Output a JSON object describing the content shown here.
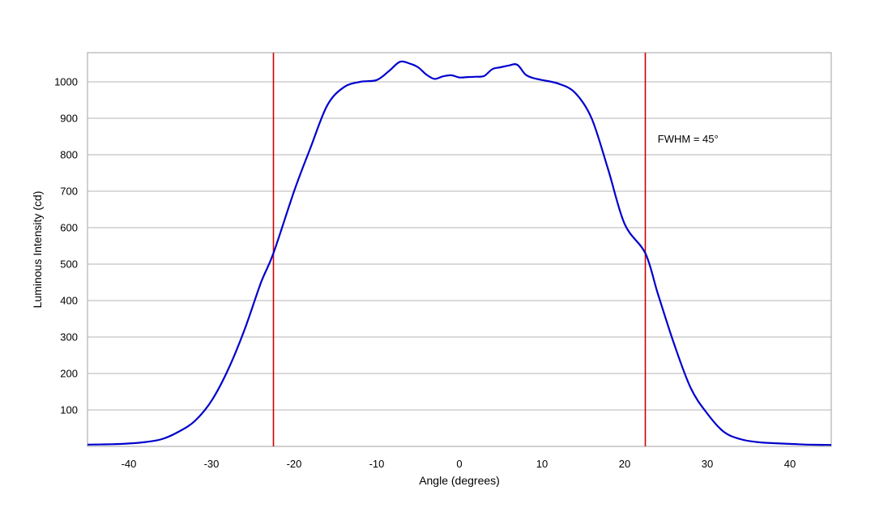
{
  "chart_data": {
    "type": "line",
    "title": "",
    "xlabel": "Angle (degrees)",
    "ylabel": "Luminous Intensity (cd)",
    "xlim": [
      -45,
      45
    ],
    "ylim": [
      0,
      1080
    ],
    "x_ticks": [
      -40,
      -30,
      -20,
      -10,
      0,
      10,
      20,
      30,
      40
    ],
    "x_tick_labels": [
      "-40",
      "-30",
      "-20",
      "-10",
      "0",
      "10",
      "20",
      "30",
      "40"
    ],
    "y_ticks": [
      100,
      200,
      300,
      400,
      500,
      600,
      700,
      800,
      900,
      1000
    ],
    "y_tick_labels": [
      "100",
      "200",
      "300",
      "400",
      "500",
      "600",
      "700",
      "800",
      "900",
      "1000"
    ],
    "grid": "horizontal",
    "legend": "none",
    "series": [
      {
        "color": "#0000cc",
        "x": [
          -45,
          -42,
          -40,
          -38,
          -36,
          -34,
          -32,
          -30,
          -28,
          -26,
          -24,
          -22.5,
          -20,
          -18,
          -16,
          -14,
          -12,
          -10,
          -8.5,
          -7.2,
          -6,
          -5,
          -4,
          -3,
          -2,
          -1,
          0,
          1,
          2,
          3,
          4,
          5,
          6,
          7,
          8,
          9,
          10,
          12,
          14,
          16,
          18,
          20,
          22.5,
          24,
          26,
          28,
          30,
          32,
          34,
          36,
          38,
          40,
          42,
          45
        ],
        "y": [
          5,
          6,
          8,
          12,
          20,
          40,
          70,
          125,
          210,
          320,
          450,
          530,
          700,
          820,
          935,
          985,
          1000,
          1005,
          1030,
          1055,
          1050,
          1040,
          1020,
          1008,
          1015,
          1018,
          1012,
          1013,
          1014,
          1016,
          1035,
          1040,
          1045,
          1047,
          1020,
          1010,
          1005,
          995,
          970,
          900,
          760,
          610,
          530,
          420,
          280,
          160,
          90,
          40,
          20,
          12,
          9,
          7,
          5,
          4
        ]
      }
    ],
    "markers": [
      {
        "x": -22.5,
        "color": "#cc0000"
      },
      {
        "x": 22.5,
        "color": "#cc0000"
      }
    ],
    "annotations": [
      {
        "text": "FWHM = 45°",
        "x": 24,
        "y": 845
      }
    ]
  }
}
